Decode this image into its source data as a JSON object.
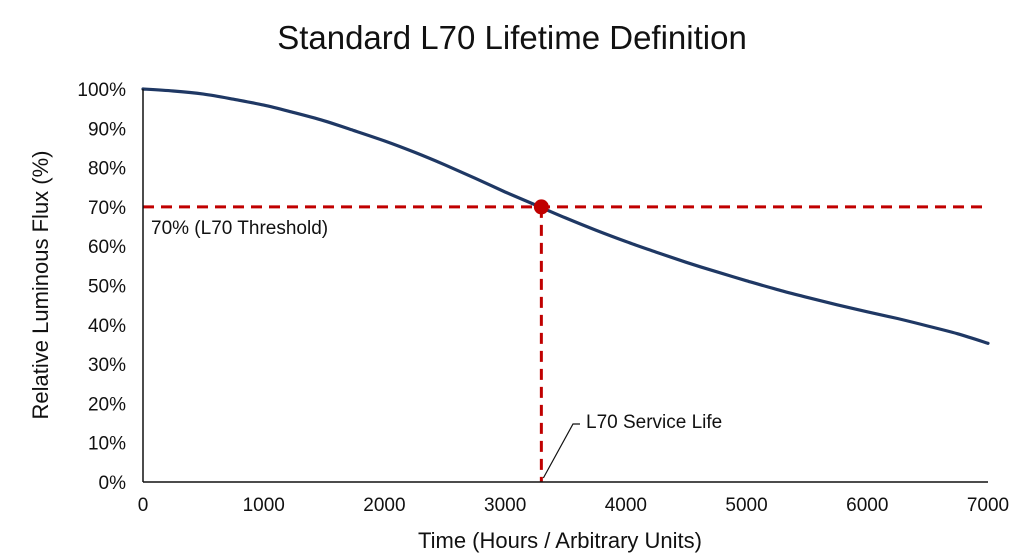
{
  "chart_data": {
    "type": "line",
    "title": "Standard L70 Lifetime Definition",
    "xlabel": "Time (Hours / Arbitrary Units)",
    "ylabel": "Relative Luminous Flux (%)",
    "xlim": [
      0,
      7000
    ],
    "ylim": [
      0,
      100
    ],
    "x_ticks": [
      0,
      1000,
      2000,
      3000,
      4000,
      5000,
      6000,
      7000
    ],
    "x_tick_labels": [
      "0",
      "1000",
      "2000",
      "3000",
      "4000",
      "5000",
      "6000",
      "7000"
    ],
    "y_ticks": [
      0,
      10,
      20,
      30,
      40,
      50,
      60,
      70,
      80,
      90,
      100
    ],
    "y_tick_labels": [
      "0%",
      "10%",
      "20%",
      "30%",
      "40%",
      "50%",
      "60%",
      "70%",
      "80%",
      "90%",
      "100%"
    ],
    "grid": false,
    "series": [
      {
        "color": "#1f3864",
        "x": [
          0,
          250,
          500,
          750,
          1000,
          1250,
          1500,
          1750,
          2000,
          2250,
          2500,
          2750,
          3000,
          3250,
          3500,
          3750,
          4000,
          4250,
          4500,
          4750,
          5000,
          5250,
          5500,
          5750,
          6000,
          6250,
          6500,
          6750,
          7000
        ],
        "y": [
          100,
          99.5,
          98.7,
          97.4,
          95.9,
          94.0,
          91.9,
          89.4,
          86.8,
          83.9,
          80.7,
          77.3,
          73.8,
          70.5,
          67.2,
          64.1,
          61.2,
          58.5,
          55.9,
          53.5,
          51.2,
          49.0,
          47.0,
          45.1,
          43.3,
          41.6,
          39.7,
          37.7,
          35.3
        ]
      }
    ],
    "threshold": {
      "value": 70,
      "label": "70% (L70 Threshold)",
      "color": "#c00000"
    },
    "l70_point": {
      "x": 3300,
      "y": 70,
      "label": "L70 Service Life",
      "color": "#c00000"
    }
  }
}
